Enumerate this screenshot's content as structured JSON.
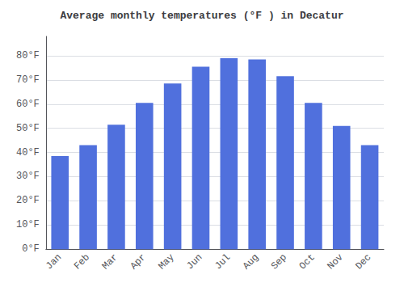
{
  "chart_data": {
    "type": "bar",
    "title": "Average monthly temperatures (°F ) in Decatur",
    "categories": [
      "Jan",
      "Feb",
      "Mar",
      "Apr",
      "May",
      "Jun",
      "Jul",
      "Aug",
      "Sep",
      "Oct",
      "Nov",
      "Dec"
    ],
    "values": [
      38.5,
      43.0,
      51.5,
      60.5,
      68.5,
      75.5,
      79.0,
      78.5,
      71.5,
      60.5,
      51.0,
      43.0
    ],
    "ylim": [
      0,
      88
    ],
    "yticks": [
      {
        "value": 0,
        "label": "0°F"
      },
      {
        "value": 10,
        "label": "10°F"
      },
      {
        "value": 20,
        "label": "20°F"
      },
      {
        "value": 30,
        "label": "30°F"
      },
      {
        "value": 40,
        "label": "40°F"
      },
      {
        "value": 50,
        "label": "50°F"
      },
      {
        "value": 60,
        "label": "60°F"
      },
      {
        "value": 70,
        "label": "70°F"
      },
      {
        "value": 80,
        "label": "80°F"
      }
    ],
    "grid": true
  }
}
